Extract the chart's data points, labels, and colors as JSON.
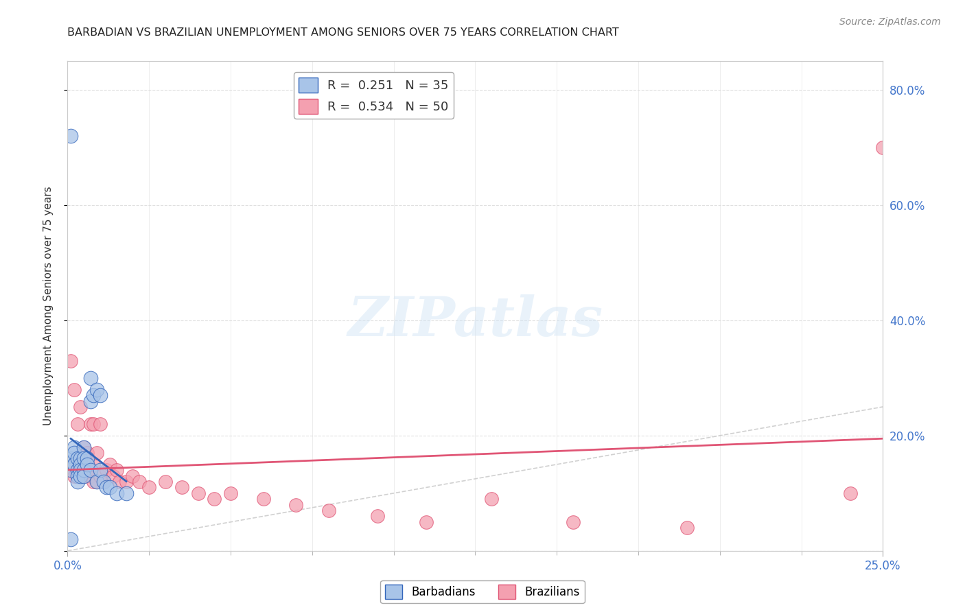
{
  "title": "BARBADIAN VS BRAZILIAN UNEMPLOYMENT AMONG SENIORS OVER 75 YEARS CORRELATION CHART",
  "source": "Source: ZipAtlas.com",
  "ylabel": "Unemployment Among Seniors over 75 years",
  "xlim": [
    0.0,
    0.25
  ],
  "ylim": [
    0.0,
    0.85
  ],
  "watermark": "ZIPatlas",
  "barbadian_x": [
    0.001,
    0.001,
    0.001,
    0.002,
    0.002,
    0.002,
    0.002,
    0.003,
    0.003,
    0.003,
    0.003,
    0.004,
    0.004,
    0.004,
    0.004,
    0.005,
    0.005,
    0.005,
    0.005,
    0.006,
    0.006,
    0.007,
    0.007,
    0.007,
    0.008,
    0.009,
    0.009,
    0.01,
    0.01,
    0.011,
    0.012,
    0.013,
    0.015,
    0.018,
    0.001
  ],
  "barbadian_y": [
    0.72,
    0.16,
    0.14,
    0.18,
    0.17,
    0.15,
    0.15,
    0.16,
    0.14,
    0.13,
    0.12,
    0.16,
    0.15,
    0.14,
    0.13,
    0.18,
    0.16,
    0.14,
    0.13,
    0.16,
    0.15,
    0.3,
    0.26,
    0.14,
    0.27,
    0.28,
    0.12,
    0.27,
    0.14,
    0.12,
    0.11,
    0.11,
    0.1,
    0.1,
    0.02
  ],
  "brazilian_x": [
    0.001,
    0.001,
    0.002,
    0.002,
    0.002,
    0.003,
    0.003,
    0.003,
    0.004,
    0.004,
    0.004,
    0.005,
    0.005,
    0.005,
    0.006,
    0.006,
    0.007,
    0.007,
    0.008,
    0.008,
    0.008,
    0.009,
    0.009,
    0.01,
    0.01,
    0.011,
    0.012,
    0.013,
    0.014,
    0.015,
    0.016,
    0.018,
    0.02,
    0.022,
    0.025,
    0.03,
    0.035,
    0.04,
    0.045,
    0.05,
    0.06,
    0.07,
    0.08,
    0.095,
    0.11,
    0.13,
    0.155,
    0.19,
    0.24,
    0.25
  ],
  "brazilian_y": [
    0.33,
    0.14,
    0.28,
    0.15,
    0.13,
    0.22,
    0.15,
    0.13,
    0.25,
    0.14,
    0.13,
    0.18,
    0.15,
    0.13,
    0.17,
    0.14,
    0.22,
    0.13,
    0.22,
    0.15,
    0.12,
    0.17,
    0.12,
    0.22,
    0.13,
    0.12,
    0.14,
    0.15,
    0.13,
    0.14,
    0.12,
    0.12,
    0.13,
    0.12,
    0.11,
    0.12,
    0.11,
    0.1,
    0.09,
    0.1,
    0.09,
    0.08,
    0.07,
    0.06,
    0.05,
    0.09,
    0.05,
    0.04,
    0.1,
    0.7
  ],
  "barbadian_color": "#a8c4e8",
  "brazilian_color": "#f4a0b0",
  "barbadian_line_color": "#3366bb",
  "brazilian_line_color": "#e05575",
  "title_color": "#222222",
  "axis_label_color": "#4477cc",
  "right_axis_color": "#4477cc",
  "grid_color": "#dddddd",
  "diag_color": "#cccccc"
}
